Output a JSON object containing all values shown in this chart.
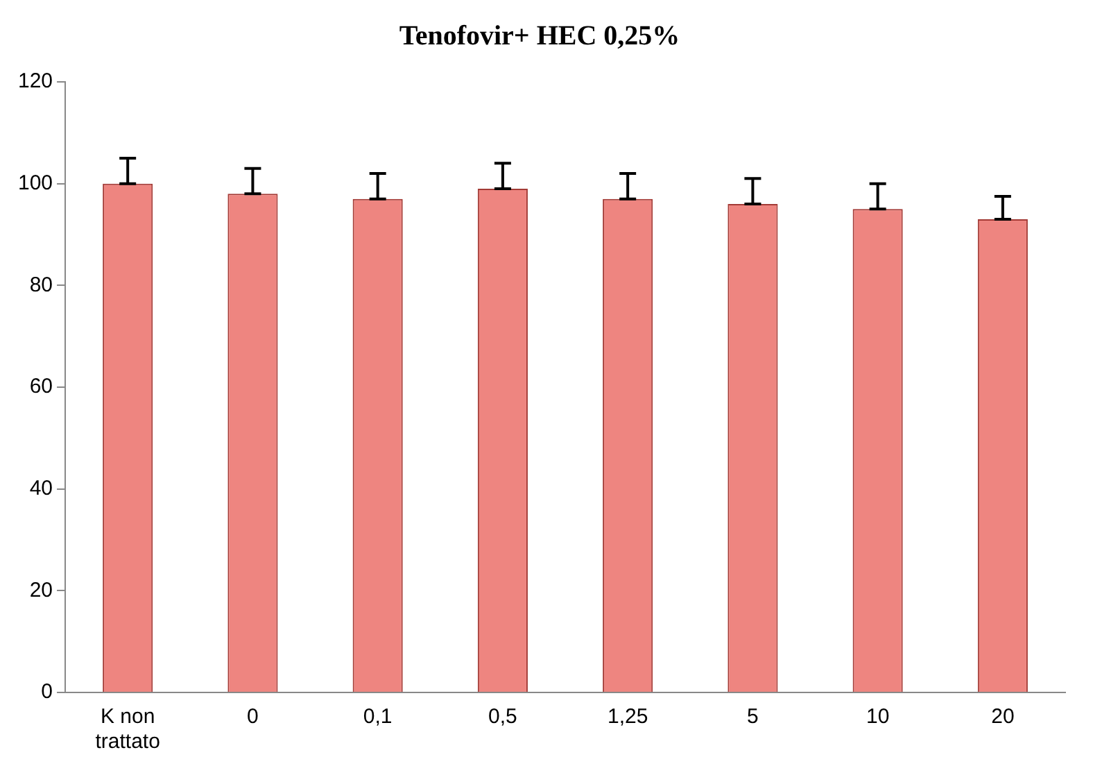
{
  "chart_data": {
    "type": "bar",
    "title": "Tenofovir+ HEC 0,25%",
    "categories": [
      "K non trattato",
      "0",
      "0,1",
      "0,5",
      "1,25",
      "5",
      "10",
      "20"
    ],
    "values": [
      100,
      98,
      97,
      99,
      97,
      96,
      95,
      93
    ],
    "errors": [
      [
        100,
        105
      ],
      [
        98,
        103
      ],
      [
        97,
        102
      ],
      [
        99,
        104
      ],
      [
        97,
        102
      ],
      [
        96,
        101
      ],
      [
        95,
        100
      ],
      [
        93,
        97.5
      ]
    ],
    "color": "#ee8580",
    "ylim": [
      0,
      120
    ],
    "yticks": [
      0,
      20,
      40,
      60,
      80,
      100,
      120
    ],
    "grid": false,
    "legend": false
  }
}
